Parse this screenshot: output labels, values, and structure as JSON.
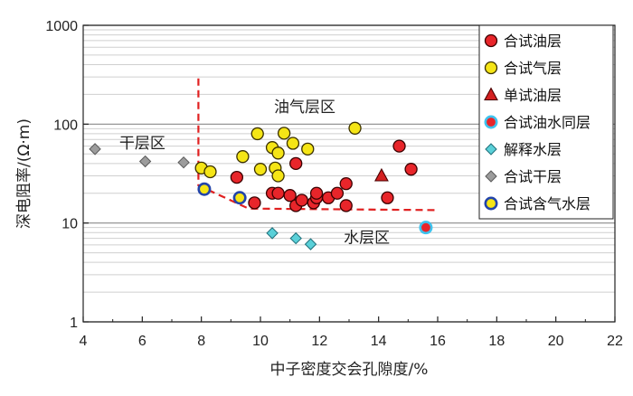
{
  "chart_data": {
    "type": "scatter",
    "xlabel": "中子密度交会孔隙度/%",
    "ylabel": "深电阻率/(Ω·m)",
    "xlim": [
      4,
      22
    ],
    "ylim": [
      1,
      1000
    ],
    "y_scale": "log",
    "x_ticks": [
      "4",
      "6",
      "8",
      "10",
      "12",
      "14",
      "16",
      "18",
      "20",
      "22"
    ],
    "y_ticks": [
      {
        "label": "1",
        "value": 1
      },
      {
        "label": "10",
        "value": 10
      },
      {
        "label": "100",
        "value": 100
      },
      {
        "label": "1000",
        "value": 1000
      }
    ],
    "grid": "horizontal",
    "legend_position": "top-right",
    "region_labels": [
      {
        "text": "油气层区",
        "x": 11.5,
        "y": 150
      },
      {
        "text": "干层区",
        "x": 6.0,
        "y": 65
      },
      {
        "text": "水层区",
        "x": 13.6,
        "y": 7.2
      }
    ],
    "boundary": [
      [
        7.9,
        290
      ],
      [
        7.9,
        24
      ],
      [
        9.6,
        14
      ],
      [
        16.0,
        13.5
      ]
    ],
    "series": [
      {
        "name": "合试油层",
        "marker": "circle",
        "fill": "#e8252a",
        "stroke": "#3a0000",
        "points": [
          [
            9.2,
            29
          ],
          [
            9.8,
            16
          ],
          [
            10.4,
            20
          ],
          [
            10.6,
            20
          ],
          [
            11.0,
            19
          ],
          [
            11.2,
            15
          ],
          [
            11.4,
            17
          ],
          [
            11.2,
            40
          ],
          [
            11.8,
            16
          ],
          [
            11.9,
            18
          ],
          [
            11.9,
            20
          ],
          [
            12.3,
            18
          ],
          [
            12.6,
            20
          ],
          [
            12.9,
            15
          ],
          [
            12.9,
            25
          ],
          [
            14.3,
            18
          ],
          [
            14.7,
            60
          ],
          [
            15.1,
            35
          ]
        ]
      },
      {
        "name": "合试气层",
        "marker": "circle",
        "fill": "#f5e516",
        "stroke": "#3a3000",
        "points": [
          [
            8.0,
            36
          ],
          [
            8.3,
            33
          ],
          [
            9.4,
            47
          ],
          [
            9.9,
            80
          ],
          [
            10.0,
            35
          ],
          [
            10.4,
            58
          ],
          [
            10.5,
            36
          ],
          [
            10.6,
            51
          ],
          [
            10.6,
            30
          ],
          [
            10.8,
            81
          ],
          [
            11.1,
            64
          ],
          [
            11.6,
            56
          ],
          [
            13.2,
            91
          ]
        ]
      },
      {
        "name": "单试油层",
        "marker": "triangle",
        "fill": "#d42020",
        "stroke": "#4a0000",
        "points": [
          [
            14.1,
            30
          ]
        ]
      },
      {
        "name": "合试油水同层",
        "marker": "circle-ring",
        "fill": "#e8252a",
        "stroke": "#3ec3ee",
        "points": [
          [
            15.6,
            9
          ]
        ]
      },
      {
        "name": "解释水层",
        "marker": "diamond",
        "fill": "#5ad0d8",
        "stroke": "#1f6f7a",
        "points": [
          [
            10.4,
            7.9
          ],
          [
            11.2,
            7.0
          ],
          [
            11.7,
            6.1
          ]
        ]
      },
      {
        "name": "合试干层",
        "marker": "diamond",
        "fill": "#9c9c9c",
        "stroke": "#5a5a5a",
        "points": [
          [
            4.4,
            56
          ],
          [
            6.1,
            42
          ],
          [
            7.4,
            41
          ]
        ]
      },
      {
        "name": "合试含气水层",
        "marker": "circle-ring",
        "fill": "#f5e516",
        "stroke": "#2244aa",
        "points": [
          [
            8.1,
            22
          ],
          [
            9.3,
            18
          ]
        ]
      }
    ]
  }
}
